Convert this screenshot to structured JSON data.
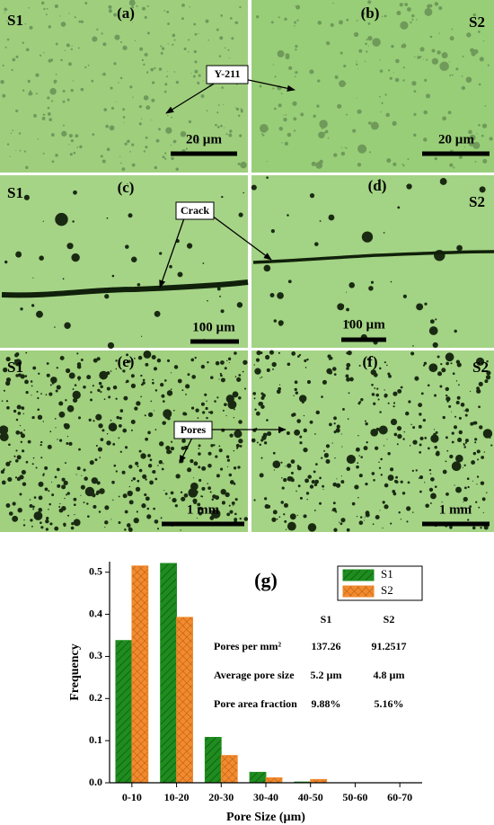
{
  "panels": [
    {
      "sample": "S1",
      "letter": "(a)",
      "scale": "20 µm"
    },
    {
      "sample": "S2",
      "letter": "(b)",
      "scale": "20 µm"
    },
    {
      "sample": "S1",
      "letter": "(c)",
      "scale": "100 µm"
    },
    {
      "sample": "S2",
      "letter": "(d)",
      "scale": "100 µm"
    },
    {
      "sample": "S1",
      "letter": "(e)",
      "scale": "1 mm"
    },
    {
      "sample": "S2",
      "letter": "(f)",
      "scale": "1 mm"
    }
  ],
  "annotations": [
    "Y-211",
    "Crack",
    "Pores"
  ],
  "chart_data": {
    "type": "bar",
    "annotation": "(g)",
    "x_label": "Pore Size (µm)",
    "y_label": "Frequency",
    "categories": [
      "0-10",
      "10-20",
      "20-30",
      "30-40",
      "40-50",
      "50-60",
      "60-70"
    ],
    "series": [
      {
        "name": "S1",
        "color": "#1e8c1e",
        "values": [
          0.338,
          0.521,
          0.108,
          0.025,
          0.002,
          0,
          0
        ]
      },
      {
        "name": "S2",
        "color": "#f28a2e",
        "values": [
          0.515,
          0.393,
          0.065,
          0.012,
          0.008,
          0,
          0
        ]
      }
    ],
    "ylim": [
      0,
      0.525
    ],
    "yticks": [
      {
        "value": 0,
        "label": "0.0"
      },
      0.1,
      0.2,
      0.3,
      0.4,
      0.5
    ],
    "legend": "top-right",
    "table": {
      "header": [
        "S1",
        "S2"
      ],
      "rows": [
        [
          "Pores per mm²",
          "137.26",
          "91.2517"
        ],
        [
          "Average pore size",
          "5.2 µm",
          "4.8 µm"
        ],
        [
          "Pore area fraction",
          "9.88%",
          "5.16%"
        ]
      ]
    }
  }
}
